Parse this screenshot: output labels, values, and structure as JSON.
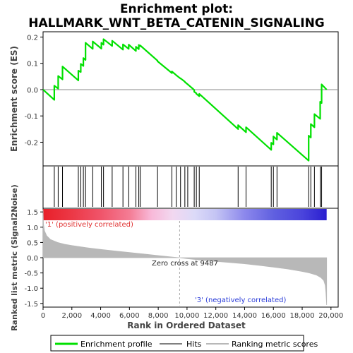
{
  "chart_data": {
    "type": "line",
    "title_line1": "Enrichment plot:",
    "title_line2": "HALLMARK_WNT_BETA_CATENIN_SIGNALING",
    "es_ylabel": "Enrichment score (ES)",
    "metric_ylabel": "Ranked list metric (Signal2Noise)",
    "xlabel": "Rank in Ordered Dataset",
    "x_ticks": [
      "0",
      "2,000",
      "4,000",
      "6,000",
      "8,000",
      "10,000",
      "12,000",
      "14,000",
      "16,000",
      "18,000",
      "20,000"
    ],
    "x_tick_values": [
      0,
      2000,
      4000,
      6000,
      8000,
      10000,
      12000,
      14000,
      16000,
      18000,
      20000
    ],
    "es_ticks": [
      "0.2",
      "0.1",
      "0.0",
      "-0.1",
      "-0.2"
    ],
    "es_tick_values": [
      0.2,
      0.1,
      0.0,
      -0.1,
      -0.2
    ],
    "metric_ticks": [
      "1.5",
      "1.0",
      "0.5",
      "0.0",
      "-0.5",
      "-1.0",
      "-1.5"
    ],
    "metric_tick_values": [
      1.5,
      1.0,
      0.5,
      0.0,
      -0.5,
      -1.0,
      -1.5
    ],
    "xlim": [
      0,
      20500
    ],
    "es_ylim": [
      -0.29,
      0.22
    ],
    "metric_ylim": [
      -1.62,
      1.62
    ],
    "n_genes": 19700,
    "zero_cross": 9487,
    "zero_cross_label": "Zero cross at 9487",
    "pos_label": "'1' (positively correlated)",
    "neg_label": "'3' (negatively correlated)",
    "hits": [
      780,
      1050,
      1350,
      2450,
      2620,
      2800,
      2950,
      3450,
      4050,
      4200,
      4800,
      5550,
      5950,
      6450,
      6650,
      6750,
      7950,
      8950,
      9250,
      9550,
      9850,
      10050,
      10500,
      10650,
      10850,
      13550,
      14100,
      15850,
      16000,
      16250,
      18450,
      18600,
      18850,
      19250,
      19350
    ],
    "es_series": {
      "name": "Enrichment profile",
      "color": "#00e000",
      "x": [
        0,
        780,
        780,
        1050,
        1050,
        1350,
        1350,
        2450,
        2450,
        2620,
        2620,
        2800,
        2800,
        2950,
        2950,
        3450,
        3450,
        4050,
        4050,
        4200,
        4200,
        4800,
        4800,
        5550,
        5550,
        5950,
        5950,
        6450,
        6450,
        6650,
        6650,
        6750,
        6750,
        7950,
        7950,
        8950,
        8950,
        9250,
        9250,
        9550,
        9550,
        9850,
        9850,
        10050,
        10050,
        10500,
        10500,
        10650,
        10650,
        10850,
        10850,
        13550,
        13550,
        14100,
        14100,
        15850,
        15850,
        16000,
        16000,
        16250,
        16250,
        18450,
        18450,
        18600,
        18600,
        18850,
        18850,
        19250,
        19250,
        19350,
        19350,
        19700
      ],
      "y": [
        0.0,
        -0.039,
        0.015,
        0.004,
        0.052,
        0.039,
        0.088,
        0.035,
        0.072,
        0.067,
        0.098,
        0.09,
        0.12,
        0.113,
        0.178,
        0.155,
        0.183,
        0.156,
        0.178,
        0.171,
        0.192,
        0.166,
        0.186,
        0.152,
        0.172,
        0.155,
        0.171,
        0.147,
        0.163,
        0.154,
        0.17,
        0.165,
        0.168,
        0.11,
        0.108,
        0.063,
        0.069,
        0.055,
        0.055,
        0.042,
        0.043,
        0.03,
        0.029,
        0.02,
        0.02,
        -0.001,
        -0.008,
        -0.014,
        -0.016,
        -0.025,
        -0.016,
        -0.15,
        -0.135,
        -0.162,
        -0.143,
        -0.229,
        -0.202,
        -0.208,
        -0.178,
        -0.19,
        -0.164,
        -0.27,
        -0.175,
        -0.182,
        -0.131,
        -0.143,
        -0.093,
        -0.111,
        -0.046,
        -0.051,
        0.02,
        0.0
      ]
    },
    "metric_curve": {
      "name": "Ranking metric scores",
      "color": "#b8b8b8",
      "x": [
        0,
        30,
        100,
        250,
        500,
        1000,
        1500,
        2000,
        3000,
        4000,
        5000,
        6000,
        7000,
        8000,
        9000,
        9487,
        10000,
        11000,
        12000,
        13000,
        14000,
        15000,
        16000,
        17000,
        18000,
        18500,
        19000,
        19300,
        19500,
        19600,
        19650,
        19700
      ],
      "y": [
        1.58,
        1.1,
        0.88,
        0.72,
        0.6,
        0.5,
        0.44,
        0.4,
        0.33,
        0.27,
        0.22,
        0.17,
        0.12,
        0.07,
        0.02,
        0.0,
        -0.03,
        -0.08,
        -0.12,
        -0.16,
        -0.2,
        -0.25,
        -0.31,
        -0.37,
        -0.45,
        -0.5,
        -0.57,
        -0.65,
        -0.75,
        -0.9,
        -1.15,
        -1.55
      ]
    },
    "color_bar_stops": [
      {
        "x": 0,
        "color": "#e8202a"
      },
      {
        "x": 2000,
        "color": "#ec3846"
      },
      {
        "x": 4000,
        "color": "#f0546a"
      },
      {
        "x": 6000,
        "color": "#f47c94"
      },
      {
        "x": 7500,
        "color": "#f8b8d8"
      },
      {
        "x": 9000,
        "color": "#f2d8f0"
      },
      {
        "x": 10500,
        "color": "#dcdaf8"
      },
      {
        "x": 12000,
        "color": "#c4c4f4"
      },
      {
        "x": 14000,
        "color": "#8c88ec"
      },
      {
        "x": 16000,
        "color": "#6060e0"
      },
      {
        "x": 18000,
        "color": "#4a44dc"
      },
      {
        "x": 19700,
        "color": "#2a1ed0"
      }
    ],
    "legend": {
      "es": "Enrichment profile",
      "hits": "Hits",
      "metric": "Ranking metric scores"
    }
  }
}
